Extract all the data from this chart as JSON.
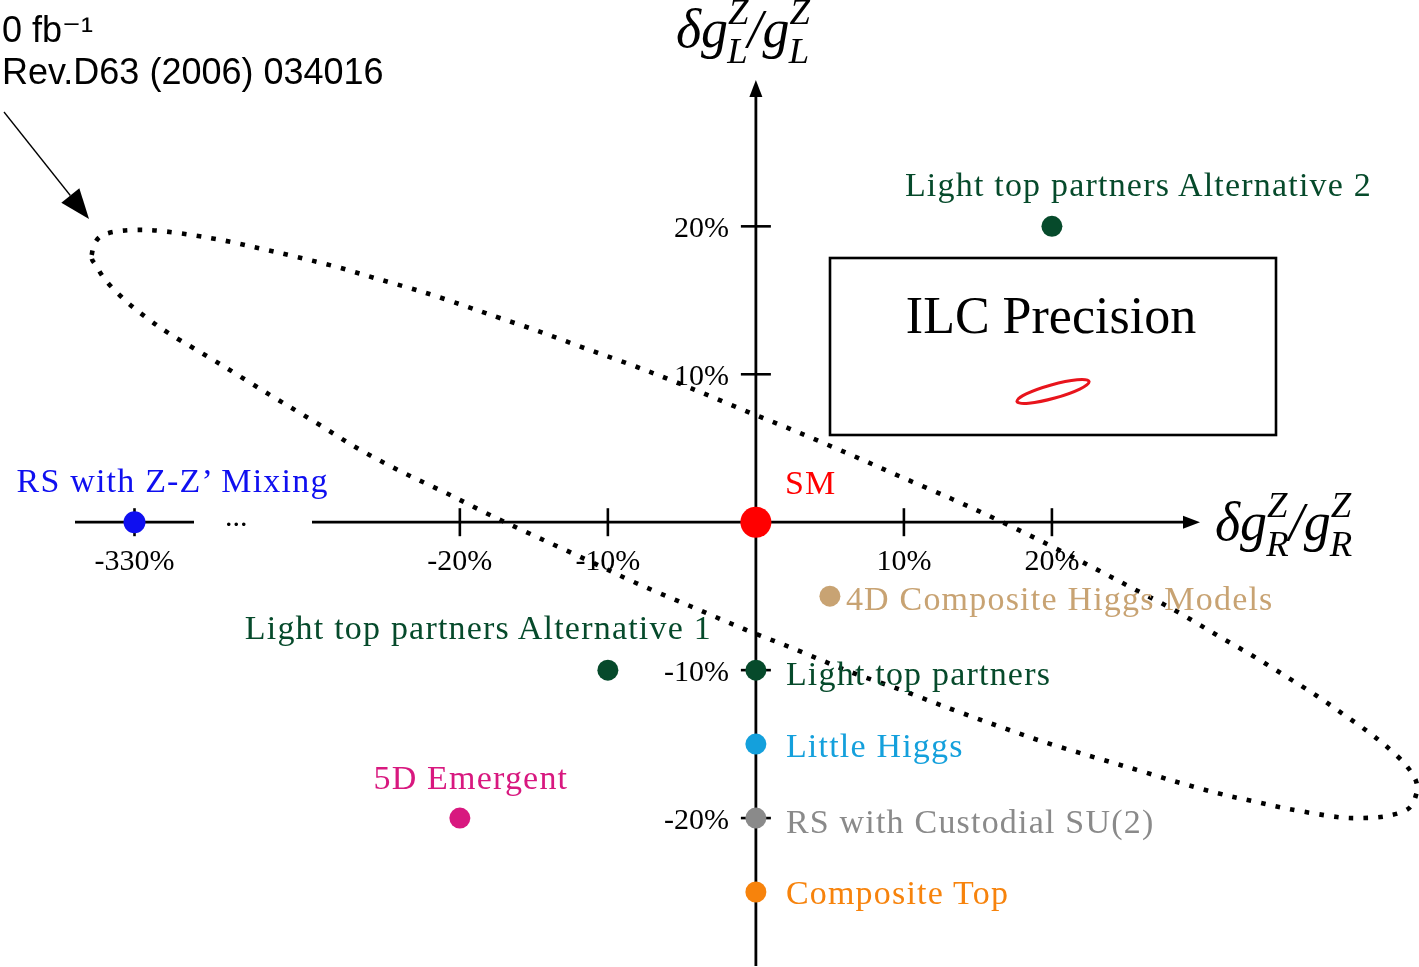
{
  "chart_data": [
    {
      "type": "scatter",
      "marker": "circle",
      "categories": [
        "-330%"
      ],
      "ylim": [
        -30,
        35.3
      ],
      "tick_labels": "x",
      "annotations": [
        "..."
      ],
      "series": [
        {
          "name": "RS with Z-Z’ Mixing",
          "color": "#0f0ff0",
          "values": [
            0
          ]
        }
      ]
    },
    {
      "type": "scatter",
      "marker": "circle",
      "xlabel": "δg$^{Z}$$_{R}$/g$^{Z}$$_{R}$",
      "ylabel": "δg$^{Z}$$_{L}$/g$^{Z}$$_{L}$",
      "xlim": [
        -51,
        44.8
      ],
      "xticks": [
        {
          "value": -20,
          "label": "-20%"
        },
        {
          "value": -10,
          "label": "-10%"
        },
        {
          "value": 10,
          "label": "10%"
        },
        {
          "value": 20,
          "label": "20%"
        }
      ],
      "ylim": [
        -30,
        35.3
      ],
      "yticks": [
        {
          "value": -20,
          "label": "-20%"
        },
        {
          "value": -10,
          "label": "-10%"
        },
        {
          "value": 10,
          "label": "10%"
        },
        {
          "value": 20,
          "label": "20%"
        }
      ],
      "annotations": [
        "0 fb⁻¹",
        "Rev.D63 (2006) 034016",
        "ILC Precision"
      ],
      "series": [
        {
          "name": "SM",
          "color": "#ff0000",
          "x": [
            0
          ],
          "values": [
            0
          ]
        },
        {
          "name": "Light top partners Alternative 2",
          "color": "#064a2b",
          "x": [
            20
          ],
          "values": [
            20
          ]
        },
        {
          "name": "4D Composite Higgs Models",
          "color": "#c8a373",
          "x": [
            5
          ],
          "values": [
            -5
          ]
        },
        {
          "name": "Light top partners Alternative 1",
          "color": "#064a2b",
          "x": [
            -10
          ],
          "values": [
            -10
          ]
        },
        {
          "name": "Light top partners",
          "color": "#064a2b",
          "x": [
            0
          ],
          "values": [
            -10
          ]
        },
        {
          "name": "Little Higgs",
          "color": "#14a0dc",
          "x": [
            0
          ],
          "values": [
            -15
          ]
        },
        {
          "name": "RS with Custodial SU(2)",
          "color": "#8a8a8a",
          "x": [
            0
          ],
          "values": [
            -20
          ]
        },
        {
          "name": "Composite Top",
          "color": "#f7830c",
          "x": [
            0
          ],
          "values": [
            -25
          ]
        },
        {
          "name": "5D Emergent",
          "color": "#d8187f",
          "x": [
            -20
          ],
          "values": [
            -20
          ]
        }
      ]
    }
  ]
}
